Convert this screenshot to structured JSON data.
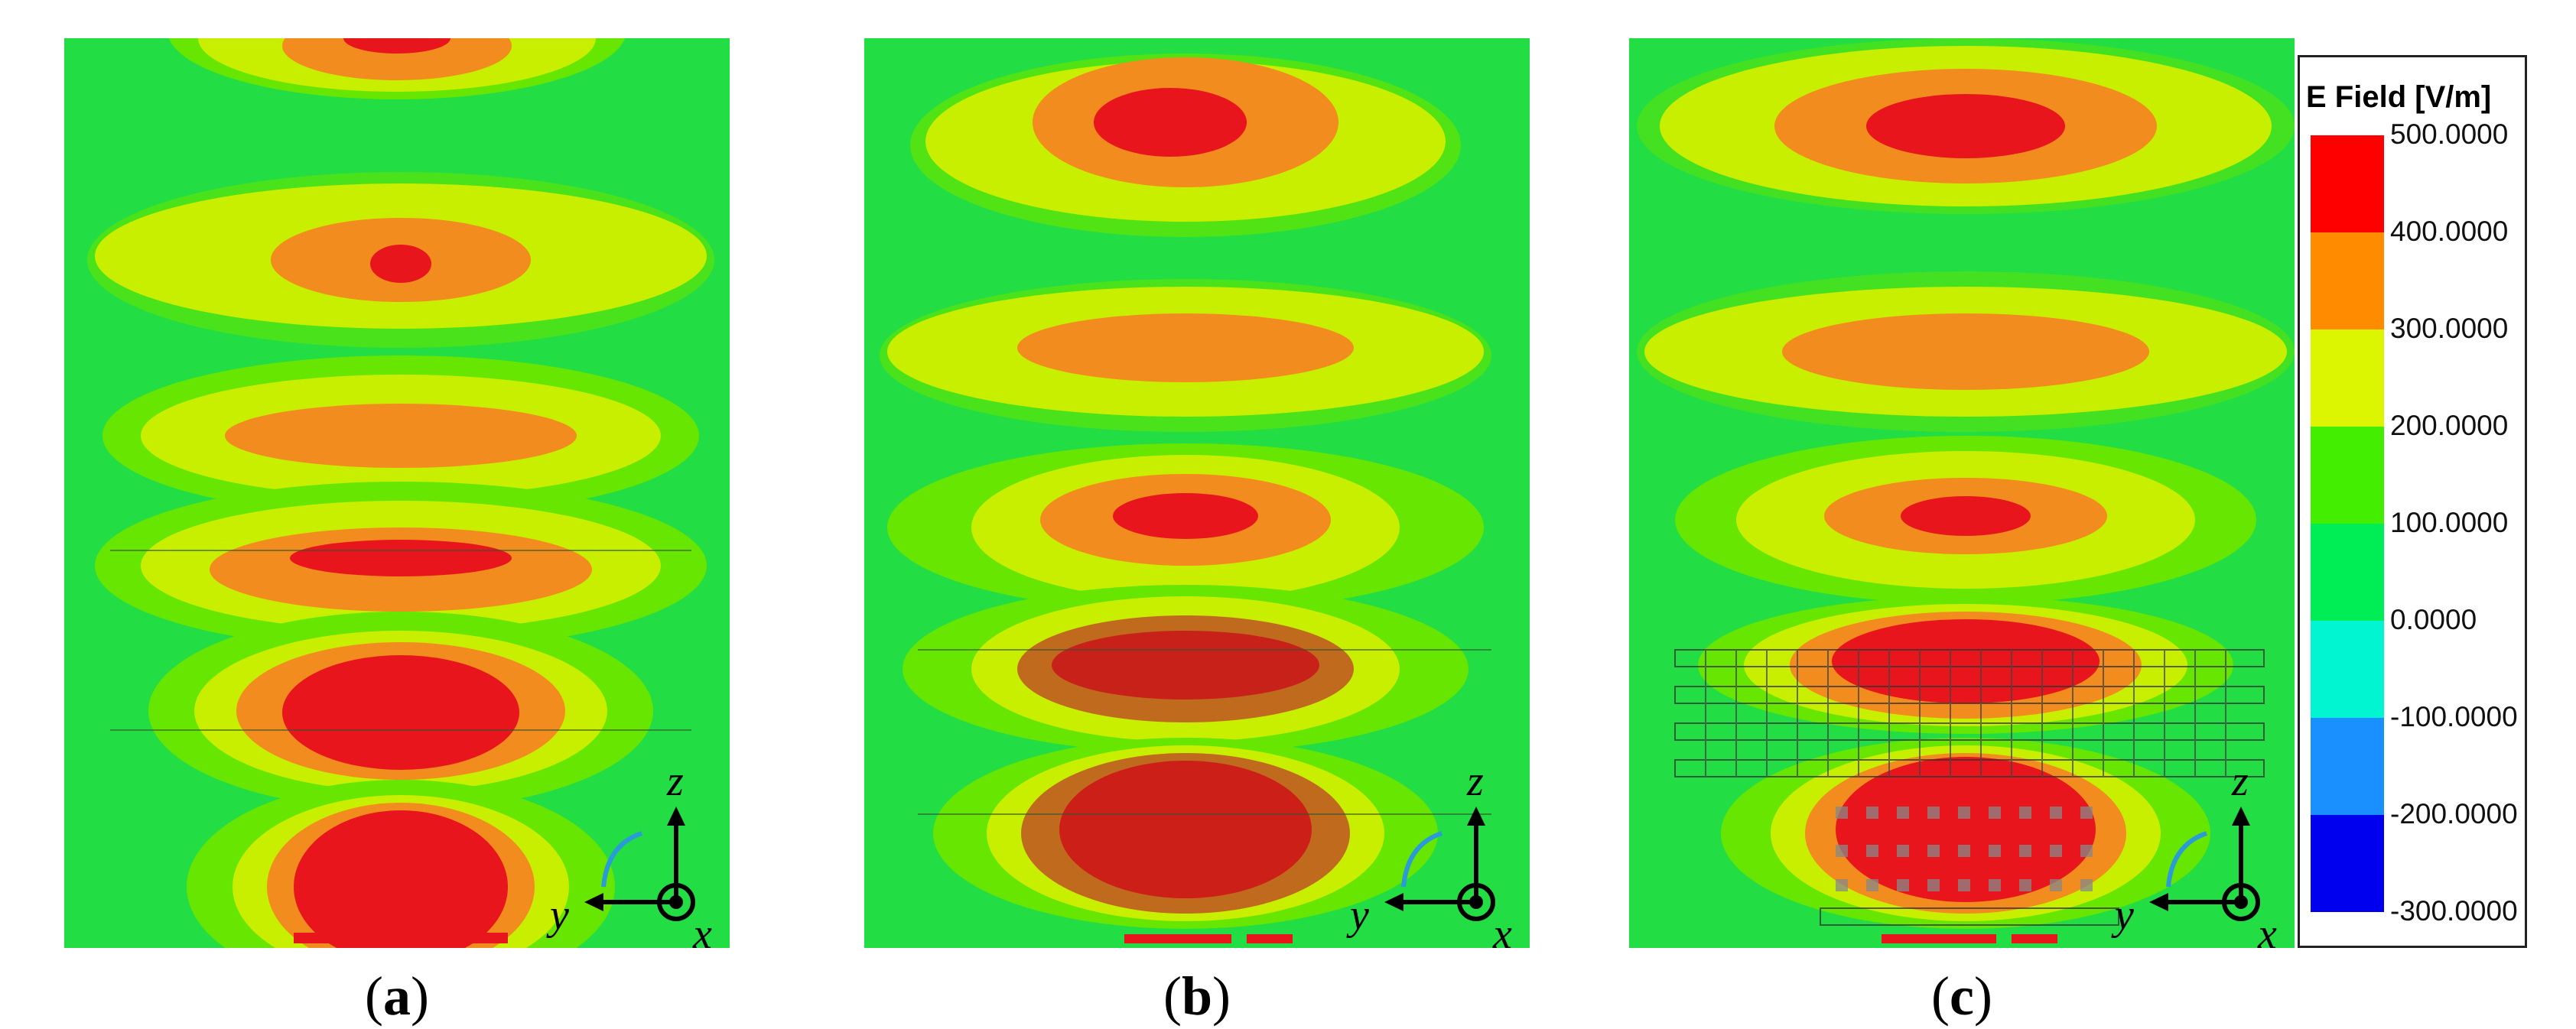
{
  "panels": [
    {
      "label": "a",
      "axes": {
        "y": "y",
        "z": "z",
        "x": "x"
      }
    },
    {
      "label": "b",
      "axes": {
        "y": "y",
        "z": "z",
        "x": "x"
      }
    },
    {
      "label": "c",
      "axes": {
        "y": "y",
        "z": "z",
        "x": "x"
      }
    }
  ],
  "legend": {
    "title": "E Field [V/m]",
    "ticks": [
      "500.0000",
      "400.0000",
      "300.0000",
      "200.0000",
      "100.0000",
      "0.0000",
      "-100.0000",
      "-200.0000",
      "-300.0000"
    ],
    "colors": [
      "#ff0000",
      "#ff8c00",
      "#dcf500",
      "#44ee00",
      "#00ee55",
      "#00f5d0",
      "#1a90ff",
      "#0000ee"
    ]
  },
  "contour_colors": {
    "background": "#22dd44",
    "level_200": "#66e600",
    "level_300": "#c8ee00",
    "level_400": "#f28c1e",
    "level_500": "#e8161c"
  }
}
